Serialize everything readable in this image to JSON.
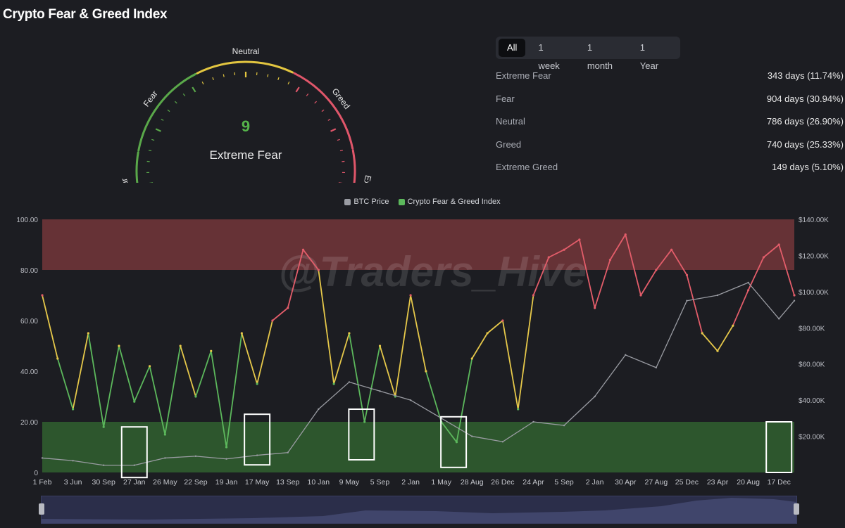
{
  "page": {
    "title": "Crypto Fear & Greed Index"
  },
  "gauge": {
    "value": "9",
    "classification": "Extreme Fear",
    "zone_labels": [
      "Extreme Fear",
      "Fear",
      "Neutral",
      "Greed",
      "Extreme Greed"
    ],
    "colors": {
      "green": "#5aa84a",
      "yellow": "#e3c640",
      "red": "#e0566a",
      "value_text": "#55b44a"
    }
  },
  "range_tabs": [
    {
      "label": "All",
      "active": true
    },
    {
      "label": "1 week",
      "active": false
    },
    {
      "label": "1 month",
      "active": false
    },
    {
      "label": "1 Year",
      "active": false
    }
  ],
  "stats": [
    {
      "label": "Extreme Fear",
      "value": "343 days (11.74%)"
    },
    {
      "label": "Fear",
      "value": "904 days (30.94%)"
    },
    {
      "label": "Neutral",
      "value": "786 days (26.90%)"
    },
    {
      "label": "Greed",
      "value": "740 days (25.33%)"
    },
    {
      "label": "Extreme Greed",
      "value": "149 days (5.10%)"
    }
  ],
  "watermark": "@Traders_Hive",
  "chart_data": {
    "type": "line",
    "legend": [
      {
        "name": "BTC Price",
        "color": "#9a9ca3"
      },
      {
        "name": "Crypto Fear & Greed Index",
        "color": "#5cb85c"
      }
    ],
    "x_ticks": [
      "1 Feb",
      "3 Jun",
      "30 Sep",
      "27 Jan",
      "26 May",
      "22 Sep",
      "19 Jan",
      "17 May",
      "13 Sep",
      "10 Jan",
      "9 May",
      "5 Sep",
      "2 Jan",
      "1 May",
      "28 Aug",
      "26 Dec",
      "24 Apr",
      "5 Sep",
      "2 Jan",
      "30 Apr",
      "27 Aug",
      "25 Dec",
      "23 Apr",
      "20 Aug",
      "17 Dec"
    ],
    "y_left_ticks": [
      "0",
      "20.00",
      "40.00",
      "60.00",
      "80.00",
      "100.00"
    ],
    "y_right_ticks": [
      "$20.00K",
      "$40.00K",
      "$60.00K",
      "$80.00K",
      "$100.00K",
      "$120.00K",
      "$140.00K"
    ],
    "y_left_range": [
      0,
      100
    ],
    "y_right_range": [
      0,
      140000
    ],
    "bands": [
      {
        "from": 0,
        "to": 20,
        "color": "#2e5a2e"
      },
      {
        "from": 80,
        "to": 100,
        "color": "#6a3438"
      }
    ],
    "zone_colors": {
      "fear": "#5cb85c",
      "neutral": "#e6c84a",
      "greed": "#e35d6a"
    },
    "series": [
      {
        "name": "Crypto Fear & Greed Index",
        "x": [
          0,
          0.5,
          1,
          1.5,
          2,
          2.5,
          3,
          3.5,
          4,
          4.5,
          5,
          5.5,
          6,
          6.5,
          7,
          7.5,
          8,
          8.5,
          9,
          9.5,
          10,
          10.5,
          11,
          11.5,
          12,
          12.5,
          13,
          13.5,
          14,
          14.5,
          15,
          15.5,
          16,
          16.5,
          17,
          17.5,
          18,
          18.5,
          19,
          19.5,
          20,
          20.5,
          21,
          21.5,
          22,
          22.5,
          23,
          23.5,
          24,
          24.5
        ],
        "values": [
          70,
          45,
          25,
          55,
          18,
          50,
          28,
          42,
          15,
          50,
          30,
          48,
          10,
          55,
          35,
          60,
          65,
          88,
          80,
          35,
          55,
          20,
          50,
          30,
          70,
          40,
          20,
          12,
          45,
          55,
          60,
          25,
          70,
          85,
          88,
          92,
          65,
          84,
          94,
          70,
          80,
          88,
          78,
          55,
          48,
          58,
          72,
          85,
          90,
          70
        ]
      },
      {
        "name": "BTC Price",
        "x": [
          0,
          1,
          2,
          3,
          4,
          5,
          6,
          7,
          8,
          9,
          10,
          11,
          12,
          13,
          14,
          15,
          16,
          17,
          18,
          19,
          20,
          21,
          22,
          23,
          24,
          24.5
        ],
        "values": [
          8000,
          6500,
          4000,
          4000,
          8000,
          9000,
          7500,
          9500,
          11000,
          35000,
          50000,
          45000,
          40000,
          30000,
          20000,
          17000,
          28000,
          26000,
          42000,
          65000,
          58000,
          95000,
          98000,
          105000,
          85000,
          95000
        ]
      }
    ]
  }
}
